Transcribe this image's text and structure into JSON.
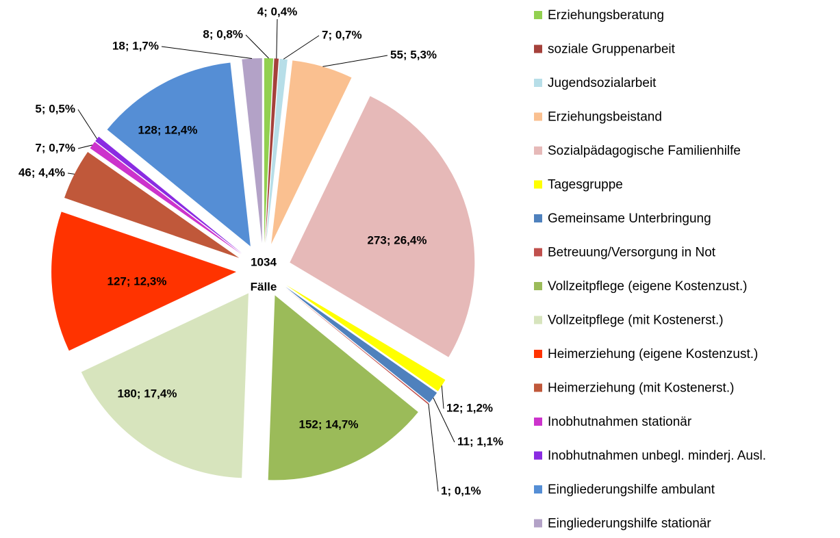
{
  "chart_data": {
    "type": "pie",
    "categories": [
      "Erziehungsberatung",
      "soziale Gruppenarbeit",
      "Jugendsozialarbeit",
      "Erziehungsbeistand",
      "Sozialpädagogische Familienhilfe",
      "Tagesgruppe",
      "Gemeinsame Unterbringung",
      "Betreuung/Versorgung in Not",
      "Vollzeitpflege (eigene Kostenzust.)",
      "Vollzeitpflege (mit Kostenerst.)",
      "Heimerziehung (eigene Kostenzust.)",
      "Heimerziehung (mit Kostenerst.)",
      "Inobhutnahmen stationär",
      "Inobhutnahmen unbegl. minderj. Ausl.",
      "Eingliederungshilfe ambulant",
      "Eingliederungshilfe stationär"
    ],
    "values": [
      8,
      4,
      7,
      55,
      273,
      12,
      11,
      1,
      152,
      180,
      127,
      46,
      7,
      5,
      128,
      18
    ],
    "value_labels": [
      "8; 0,8%",
      "4; 0,4%",
      "7; 0,7%",
      "55; 5,3%",
      "273; 26,4%",
      "12; 1,2%",
      "11; 1,1%",
      "1; 0,1%",
      "152; 14,7%",
      "180; 17,4%",
      "127; 12,3%",
      "46; 4,4%",
      "7; 0,7%",
      "5; 0,5%",
      "128; 12,4%",
      "18; 1,7%"
    ],
    "colors": [
      "#92d050",
      "#a5413b",
      "#b7dee8",
      "#fac090",
      "#e6b9b8",
      "#ffff00",
      "#4f81bd",
      "#c0504d",
      "#9bbb59",
      "#d7e4bd",
      "#ff3300",
      "#c0583a",
      "#cc33cc",
      "#8a2be2",
      "#558ed5",
      "#b3a2c7"
    ],
    "total": 1034,
    "center_unit": "Fälle",
    "legend": "right"
  }
}
